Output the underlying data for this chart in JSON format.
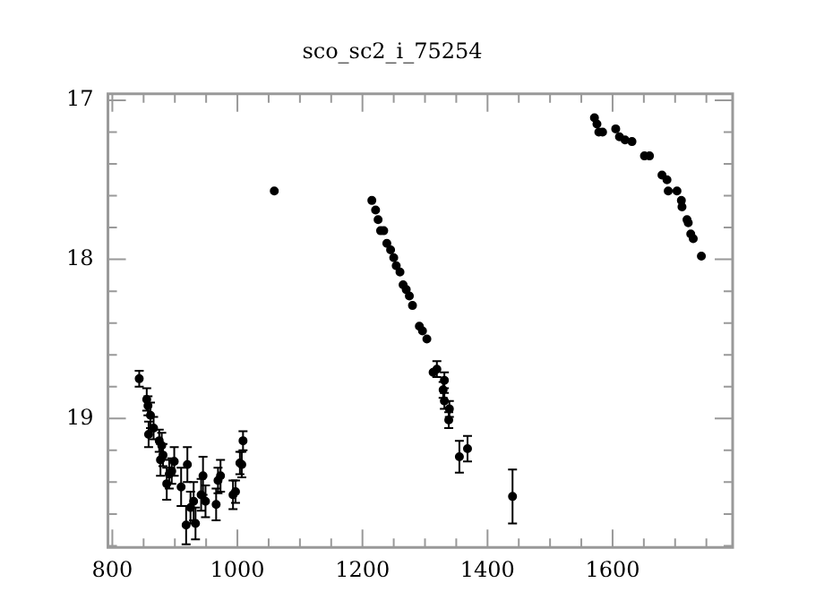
{
  "chart_data": {
    "type": "scatter",
    "title": "sco_sc2_i_75254",
    "x": [
      843,
      855,
      857,
      861,
      858,
      866,
      875,
      879,
      877,
      881,
      887,
      891,
      895,
      899,
      910,
      920,
      918,
      925,
      930,
      933,
      942,
      945,
      949,
      966,
      969,
      973,
      993,
      997,
      1004,
      1007,
      1009,
      1059,
      1215,
      1221,
      1225,
      1229,
      1234,
      1239,
      1245,
      1250,
      1254,
      1260,
      1265,
      1270,
      1275,
      1280,
      1291,
      1296,
      1303,
      1313,
      1319,
      1331,
      1329,
      1331,
      1339,
      1338,
      1355,
      1368,
      1440,
      1571,
      1575,
      1578,
      1584,
      1605,
      1611,
      1620,
      1631,
      1651,
      1659,
      1679,
      1687,
      1689,
      1703,
      1710,
      1711,
      1719,
      1721,
      1725,
      1729,
      1742
    ],
    "series": [
      {
        "color": "#000000",
        "values": [
          18.75,
          18.88,
          18.92,
          18.98,
          19.1,
          19.06,
          19.14,
          19.17,
          19.26,
          19.23,
          19.41,
          19.35,
          19.33,
          19.27,
          19.43,
          19.29,
          19.67,
          19.56,
          19.52,
          19.66,
          19.48,
          19.36,
          19.52,
          19.54,
          19.39,
          19.36,
          19.48,
          19.46,
          19.28,
          19.29,
          19.14,
          17.57,
          17.63,
          17.69,
          17.75,
          17.82,
          17.82,
          17.9,
          17.94,
          17.99,
          18.04,
          18.08,
          18.16,
          18.19,
          18.23,
          18.29,
          18.42,
          18.45,
          18.5,
          18.71,
          18.69,
          18.76,
          18.82,
          18.89,
          18.94,
          19.01,
          19.24,
          19.19,
          19.49,
          17.11,
          17.15,
          17.2,
          17.2,
          17.18,
          17.23,
          17.25,
          17.26,
          17.35,
          17.35,
          17.47,
          17.5,
          17.57,
          17.57,
          17.63,
          17.67,
          17.75,
          17.77,
          17.84,
          17.87,
          17.98
        ],
        "errors": [
          0.05,
          0.07,
          0.06,
          0.08,
          0.08,
          0.07,
          0.07,
          0.08,
          0.1,
          0.07,
          0.1,
          0.09,
          0.08,
          0.09,
          0.12,
          0.11,
          0.12,
          0.1,
          0.12,
          0.1,
          0.1,
          0.12,
          0.1,
          0.1,
          0.08,
          0.1,
          0.09,
          0.07,
          0.07,
          0.08,
          0.06,
          null,
          null,
          null,
          null,
          null,
          null,
          null,
          null,
          null,
          null,
          null,
          null,
          null,
          null,
          null,
          null,
          null,
          null,
          null,
          0.05,
          0.05,
          0.05,
          0.05,
          0.05,
          0.05,
          0.1,
          0.08,
          0.17,
          null,
          null,
          null,
          null,
          null,
          null,
          null,
          null,
          null,
          null,
          null,
          null,
          null,
          null,
          null,
          null,
          null,
          null,
          null,
          null,
          null
        ]
      }
    ],
    "marker": "circle",
    "xlim": [
      793,
      1792
    ],
    "xticks": [
      800,
      {
        "value": 850,
        "label": null
      },
      {
        "value": 900,
        "label": null
      },
      {
        "value": 950,
        "label": null
      },
      1000,
      {
        "value": 1050,
        "label": null
      },
      {
        "value": 1100,
        "label": null
      },
      {
        "value": 1150,
        "label": null
      },
      1200,
      {
        "value": 1250,
        "label": null
      },
      {
        "value": 1300,
        "label": null
      },
      {
        "value": 1350,
        "label": null
      },
      1400,
      {
        "value": 1450,
        "label": null
      },
      {
        "value": 1500,
        "label": null
      },
      {
        "value": 1550,
        "label": null
      },
      1600,
      {
        "value": 1650,
        "label": null
      },
      {
        "value": 1700,
        "label": null
      },
      {
        "value": 1750,
        "label": null
      }
    ],
    "ylim": [
      19.81,
      16.96
    ],
    "yticks": [
      17,
      {
        "value": 17.2,
        "label": null
      },
      {
        "value": 17.4,
        "label": null
      },
      {
        "value": 17.6,
        "label": null
      },
      {
        "value": 17.8,
        "label": null
      },
      18,
      {
        "value": 18.2,
        "label": null
      },
      {
        "value": 18.4,
        "label": null
      },
      {
        "value": 18.6,
        "label": null
      },
      {
        "value": 18.8,
        "label": null
      },
      19,
      {
        "value": 19.2,
        "label": null
      },
      {
        "value": 19.4,
        "label": null
      },
      {
        "value": 19.6,
        "label": null
      },
      {
        "value": 19.8,
        "label": null
      }
    ],
    "grid": false,
    "legend": false
  }
}
